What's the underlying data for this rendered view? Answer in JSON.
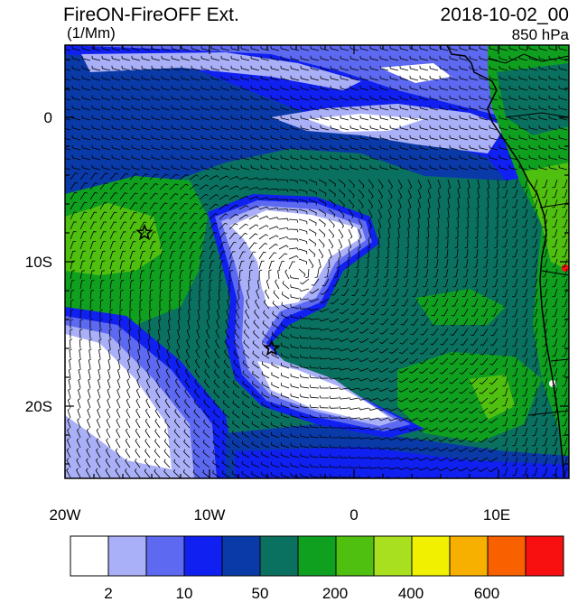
{
  "header": {
    "title": "FireON-FireOFF Ext.",
    "units": "(1/Mm)",
    "datetime": "2018-10-02_00",
    "level": "850 hPa"
  },
  "axes": {
    "y_ticks": [
      "0",
      "10S",
      "20S"
    ],
    "x_ticks": [
      "20W",
      "10W",
      "0",
      "10E"
    ]
  },
  "colorbar": {
    "labels": [
      "2",
      "10",
      "50",
      "200",
      "400",
      "600"
    ],
    "colors": [
      "#ffffff",
      "#aab0f7",
      "#5c69f0",
      "#1020f0",
      "#0a3aa8",
      "#0a7060",
      "#10a020",
      "#50c010",
      "#a8e020",
      "#f0f000",
      "#f8b000",
      "#f86000",
      "#f81010"
    ]
  },
  "map": {
    "markers": [
      {
        "type": "star-icon",
        "lon": -14.5,
        "lat": -8.0
      },
      {
        "type": "star-icon",
        "lon": -5.7,
        "lat": -16.0
      }
    ],
    "colors": {
      "white": "#ffffff",
      "lightblue": "#aab0f7",
      "midblue": "#5c69f0",
      "blue": "#1020f0",
      "darkblue": "#0a3aa8",
      "teal": "#0a7060",
      "green": "#10a020",
      "lightgreen": "#50c010",
      "land": "#10a020",
      "coast": "#000000"
    }
  }
}
